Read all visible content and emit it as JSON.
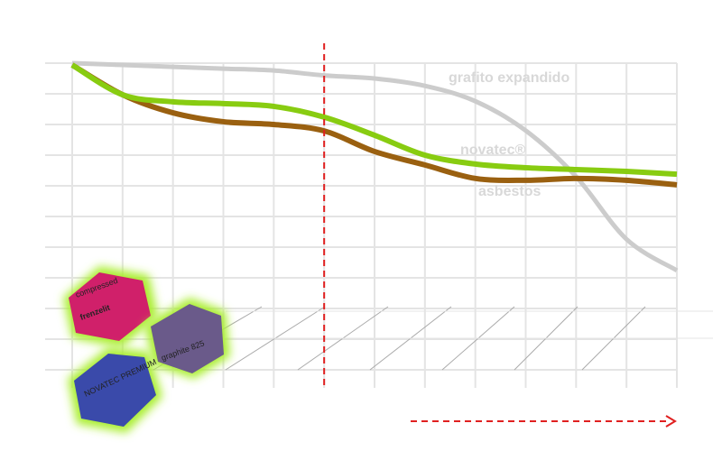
{
  "chart_data": {
    "type": "line",
    "x": [
      0,
      1,
      2,
      3,
      4,
      5,
      6,
      7,
      8,
      9,
      10,
      11,
      12
    ],
    "xlim": [
      0,
      12
    ],
    "xticks": [
      0,
      1,
      2,
      3,
      4,
      5,
      6,
      7,
      8,
      9,
      10,
      11,
      12
    ],
    "ylim": [
      0,
      10
    ],
    "yticks": [
      0,
      1,
      2,
      3,
      4,
      5,
      6,
      7,
      8,
      9,
      10
    ],
    "grid": true,
    "marker_x": 5,
    "series": [
      {
        "name": "grafito expandido",
        "color": "#cccccc",
        "values": [
          10,
          9.94,
          9.88,
          9.82,
          9.76,
          9.6,
          9.5,
          9.26,
          8.76,
          7.8,
          6.3,
          4.26,
          3.24
        ]
      },
      {
        "name": "asbestos",
        "color": "#9a6010",
        "values": [
          9.94,
          8.97,
          8.38,
          8.09,
          8,
          7.79,
          7.12,
          6.68,
          6.24,
          6.18,
          6.24,
          6.18,
          6.03
        ]
      },
      {
        "name": "novatec®",
        "color": "#88cc11",
        "values": [
          9.94,
          8.97,
          8.74,
          8.68,
          8.59,
          8.24,
          7.65,
          7,
          6.71,
          6.59,
          6.53,
          6.47,
          6.38
        ]
      }
    ]
  },
  "image_labels": [
    "compressed",
    "frenzelit",
    "graphite 825",
    "NOVATEC PREMIUM"
  ]
}
